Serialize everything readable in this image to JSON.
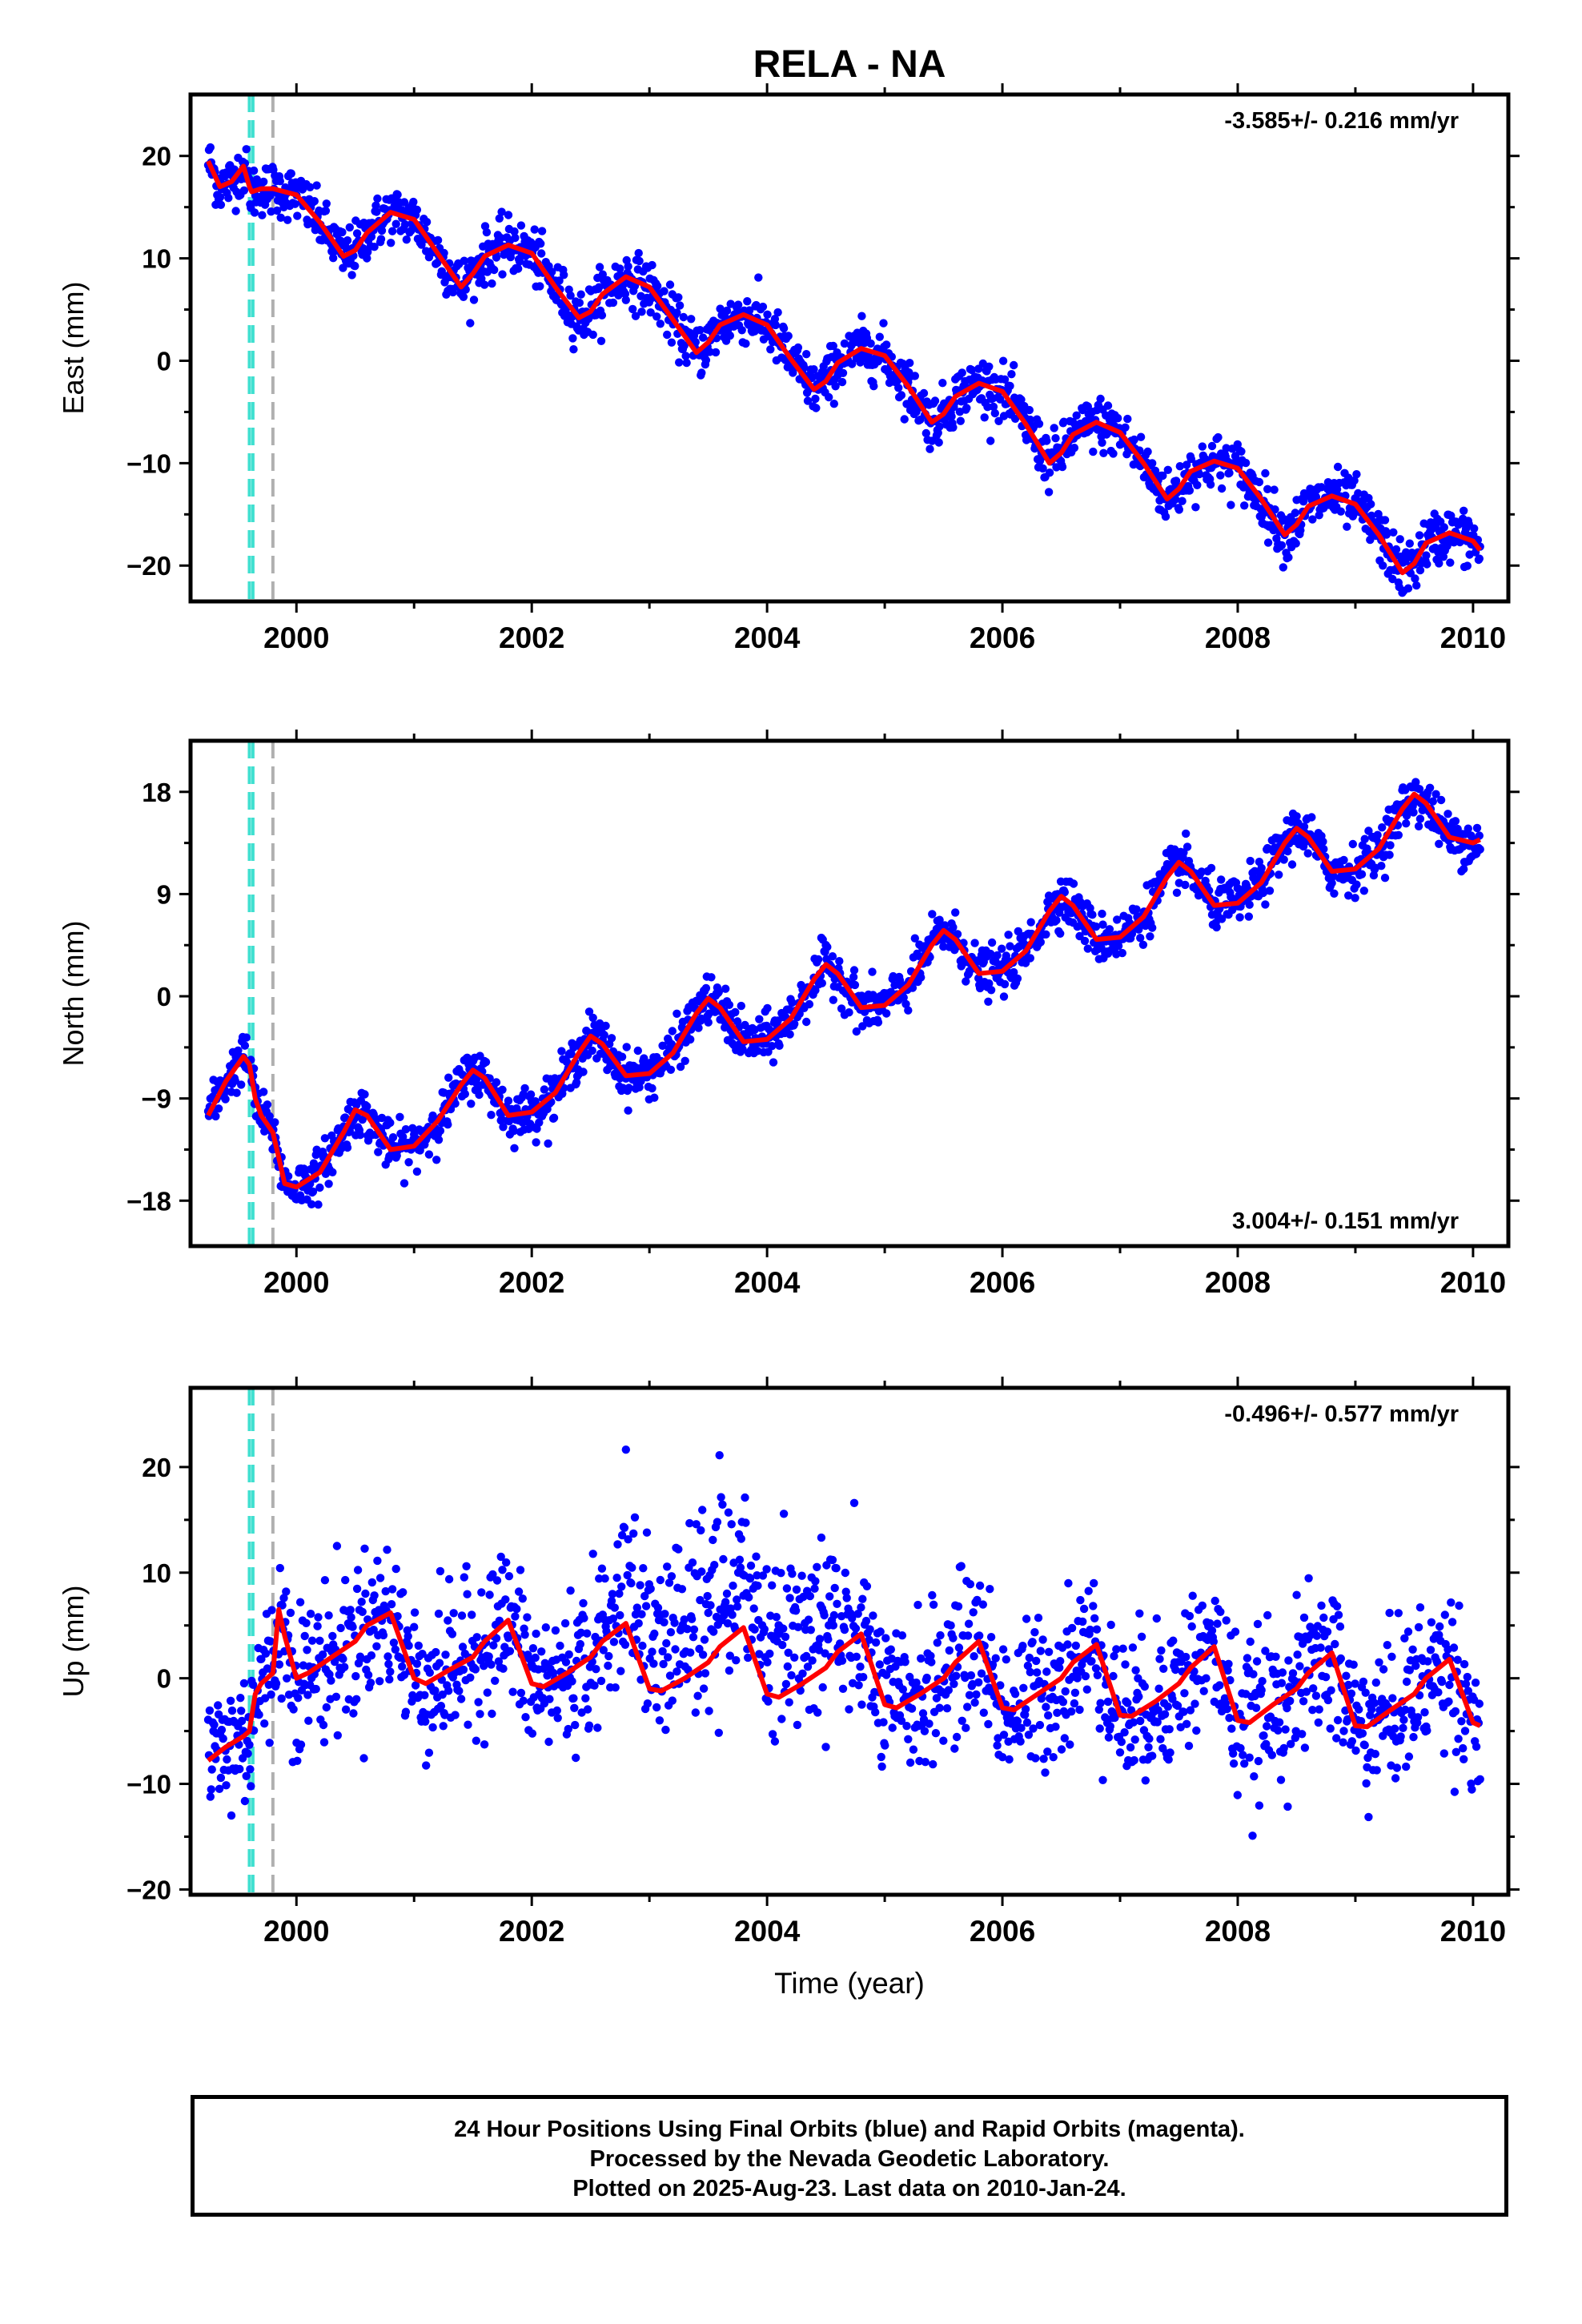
{
  "chart_data": [
    {
      "type": "scatter",
      "title": "RELA - NA",
      "ylabel": "East (mm)",
      "xlabel": "",
      "xlim": [
        1999.1,
        2010.3
      ],
      "ylim": [
        -23.5,
        26
      ],
      "yticks": [
        -20,
        -10,
        0,
        10,
        20
      ],
      "xticks": [
        2000,
        2002,
        2004,
        2006,
        2008,
        2010
      ],
      "rate_label": "-3.585+/- 0.216 mm/yr",
      "rate_position": "top-right",
      "vlines": [
        {
          "x": 1999.6,
          "color": "#40e0d0",
          "style": "dashed"
        },
        {
          "x": 1999.63,
          "color": "#40e0d0",
          "style": "dashed"
        },
        {
          "x": 1999.8,
          "color": "#b0b0b0",
          "style": "dashed"
        }
      ],
      "series": [
        {
          "role": "daily positions",
          "color": "#0000ff",
          "marker": "dot"
        },
        {
          "role": "model fit",
          "color": "#ff0000",
          "x": [
            1999.25,
            1999.35,
            1999.45,
            1999.55,
            1999.6,
            1999.62,
            1999.7,
            1999.8,
            2000.0,
            2000.2,
            2000.4,
            2000.5,
            2000.6,
            2000.8,
            2001.0,
            2001.2,
            2001.4,
            2001.5,
            2001.6,
            2001.8,
            2002.0,
            2002.2,
            2002.4,
            2002.5,
            2002.6,
            2002.8,
            2003.0,
            2003.2,
            2003.4,
            2003.5,
            2003.6,
            2003.8,
            2004.0,
            2004.2,
            2004.4,
            2004.5,
            2004.6,
            2004.8,
            2005.0,
            2005.2,
            2005.4,
            2005.5,
            2005.6,
            2005.8,
            2006.0,
            2006.2,
            2006.4,
            2006.5,
            2006.6,
            2006.8,
            2007.0,
            2007.2,
            2007.4,
            2007.5,
            2007.6,
            2007.8,
            2008.0,
            2008.2,
            2008.4,
            2008.5,
            2008.6,
            2008.8,
            2009.0,
            2009.2,
            2009.4,
            2009.5,
            2009.6,
            2009.8,
            2010.0,
            2010.06
          ],
          "y": [
            19.5,
            17.0,
            17.5,
            19.0,
            17.0,
            16.5,
            16.8,
            16.8,
            16.2,
            13.5,
            10.2,
            10.8,
            12.5,
            14.5,
            13.8,
            10.5,
            7.2,
            8.5,
            10.2,
            11.3,
            10.5,
            7.2,
            4.2,
            4.8,
            6.5,
            8.2,
            7.2,
            4.0,
            0.8,
            1.8,
            3.5,
            4.5,
            3.5,
            0.2,
            -2.8,
            -2.0,
            -0.2,
            1.2,
            0.5,
            -2.5,
            -6.0,
            -5.2,
            -3.5,
            -2.2,
            -3.0,
            -6.2,
            -10.0,
            -9.0,
            -7.2,
            -6.0,
            -7.0,
            -10.0,
            -13.5,
            -12.5,
            -10.8,
            -9.8,
            -10.5,
            -13.5,
            -17.0,
            -16.0,
            -14.2,
            -13.2,
            -14.0,
            -17.0,
            -20.7,
            -19.8,
            -17.8,
            -16.8,
            -17.6,
            -18.5
          ]
        }
      ]
    },
    {
      "type": "scatter",
      "title": "",
      "ylabel": "North (mm)",
      "xlabel": "",
      "xlim": [
        1999.1,
        2010.3
      ],
      "ylim": [
        -22,
        22.5
      ],
      "yticks": [
        -18,
        -9,
        0,
        9,
        18
      ],
      "xticks": [
        2000,
        2002,
        2004,
        2006,
        2008,
        2010
      ],
      "rate_label": "3.004+/- 0.151 mm/yr",
      "rate_position": "bottom-right",
      "vlines": [
        {
          "x": 1999.6,
          "color": "#40e0d0",
          "style": "dashed"
        },
        {
          "x": 1999.63,
          "color": "#40e0d0",
          "style": "dashed"
        },
        {
          "x": 1999.8,
          "color": "#b0b0b0",
          "style": "dashed"
        }
      ],
      "series": [
        {
          "role": "daily positions",
          "color": "#0000ff",
          "marker": "dot"
        },
        {
          "role": "model fit",
          "color": "#ff0000",
          "x": [
            1999.25,
            1999.4,
            1999.55,
            1999.6,
            1999.65,
            1999.7,
            1999.8,
            1999.9,
            2000.0,
            2000.2,
            2000.4,
            2000.5,
            2000.6,
            2000.8,
            2001.0,
            2001.2,
            2001.4,
            2001.5,
            2001.6,
            2001.8,
            2002.0,
            2002.2,
            2002.4,
            2002.5,
            2002.6,
            2002.8,
            2003.0,
            2003.2,
            2003.4,
            2003.5,
            2003.6,
            2003.8,
            2004.0,
            2004.2,
            2004.4,
            2004.5,
            2004.6,
            2004.8,
            2005.0,
            2005.2,
            2005.4,
            2005.5,
            2005.6,
            2005.8,
            2006.0,
            2006.2,
            2006.4,
            2006.5,
            2006.6,
            2006.8,
            2007.0,
            2007.2,
            2007.4,
            2007.5,
            2007.6,
            2007.8,
            2008.0,
            2008.2,
            2008.4,
            2008.5,
            2008.6,
            2008.8,
            2009.0,
            2009.2,
            2009.4,
            2009.5,
            2009.6,
            2009.8,
            2010.0,
            2010.06
          ],
          "y": [
            -10.5,
            -7.5,
            -5.3,
            -6.0,
            -9.0,
            -10.5,
            -12.0,
            -16.5,
            -16.8,
            -15.5,
            -12.0,
            -10.0,
            -10.5,
            -13.5,
            -13.2,
            -11.0,
            -7.8,
            -6.5,
            -7.2,
            -10.5,
            -10.2,
            -8.5,
            -5.0,
            -3.5,
            -4.2,
            -7.0,
            -6.8,
            -5.0,
            -1.5,
            -0.2,
            -1.0,
            -4.0,
            -3.8,
            -2.0,
            1.5,
            2.8,
            2.0,
            -1.0,
            -0.8,
            1.0,
            4.5,
            5.8,
            5.0,
            2.0,
            2.2,
            4.0,
            7.5,
            8.8,
            8.0,
            5.0,
            5.2,
            7.0,
            10.5,
            11.8,
            11.0,
            8.0,
            8.2,
            10.0,
            13.5,
            14.8,
            14.0,
            11.0,
            11.2,
            13.0,
            16.5,
            17.8,
            17.0,
            14.0,
            13.5,
            13.8
          ]
        }
      ]
    },
    {
      "type": "scatter",
      "title": "",
      "ylabel": "Up (mm)",
      "xlabel": "Time (year)",
      "xlim": [
        1999.1,
        2010.3
      ],
      "ylim": [
        -20.5,
        27.5
      ],
      "yticks": [
        -20,
        -10,
        0,
        10,
        20
      ],
      "xticks": [
        2000,
        2002,
        2004,
        2006,
        2008,
        2010
      ],
      "rate_label": "-0.496+/- 0.577 mm/yr",
      "rate_position": "top-right",
      "vlines": [
        {
          "x": 1999.6,
          "color": "#40e0d0",
          "style": "dashed"
        },
        {
          "x": 1999.63,
          "color": "#40e0d0",
          "style": "dashed"
        },
        {
          "x": 1999.8,
          "color": "#b0b0b0",
          "style": "dashed"
        }
      ],
      "series": [
        {
          "role": "daily positions",
          "color": "#0000ff",
          "marker": "dot"
        },
        {
          "role": "model fit",
          "color": "#ff0000",
          "x": [
            1999.25,
            1999.4,
            1999.55,
            1999.6,
            1999.65,
            1999.7,
            1999.8,
            1999.85,
            1999.9,
            2000.0,
            2000.1,
            2000.3,
            2000.5,
            2000.6,
            2000.8,
            2001.0,
            2001.1,
            2001.3,
            2001.5,
            2001.6,
            2001.8,
            2002.0,
            2002.1,
            2002.3,
            2002.5,
            2002.6,
            2002.8,
            2003.0,
            2003.1,
            2003.3,
            2003.5,
            2003.6,
            2003.8,
            2004.0,
            2004.1,
            2004.3,
            2004.5,
            2004.6,
            2004.8,
            2005.0,
            2005.1,
            2005.3,
            2005.5,
            2005.6,
            2005.8,
            2006.0,
            2006.1,
            2006.3,
            2006.5,
            2006.6,
            2006.8,
            2007.0,
            2007.1,
            2007.3,
            2007.5,
            2007.6,
            2007.8,
            2008.0,
            2008.1,
            2008.3,
            2008.5,
            2008.6,
            2008.8,
            2009.0,
            2009.1,
            2009.3,
            2009.5,
            2009.6,
            2009.8,
            2010.0,
            2010.06
          ],
          "y": [
            -7.8,
            -6.5,
            -5.5,
            -5.0,
            -1.5,
            -0.5,
            0.5,
            6.5,
            4.0,
            0.0,
            0.5,
            2.0,
            3.5,
            5.0,
            6.2,
            0.0,
            -0.5,
            0.8,
            2.0,
            3.5,
            5.5,
            -0.5,
            -0.8,
            0.5,
            2.0,
            3.5,
            5.2,
            -1.0,
            -1.2,
            0.0,
            1.5,
            3.0,
            4.8,
            -1.5,
            -1.8,
            -0.5,
            1.0,
            2.5,
            4.2,
            -2.5,
            -2.8,
            -1.5,
            0.0,
            1.5,
            3.5,
            -2.8,
            -3.0,
            -1.5,
            0.0,
            1.5,
            3.2,
            -3.5,
            -3.6,
            -2.2,
            -0.5,
            1.0,
            3.0,
            -4.0,
            -4.2,
            -2.5,
            -1.0,
            0.5,
            2.4,
            -4.5,
            -4.6,
            -3.0,
            -1.5,
            0.0,
            1.8,
            -4.2,
            -4.5
          ]
        }
      ]
    }
  ],
  "caption": {
    "line1": "24 Hour Positions Using Final Orbits (blue) and Rapid Orbits (magenta).",
    "line2": "Processed by the Nevada Geodetic Laboratory.",
    "line3": "Plotted on 2025-Aug-23. Last data on 2010-Jan-24."
  },
  "colors": {
    "points": "#0000ff",
    "fit": "#ff0000",
    "event_line": "#40e0d0",
    "gray_line": "#b0b0b0"
  }
}
